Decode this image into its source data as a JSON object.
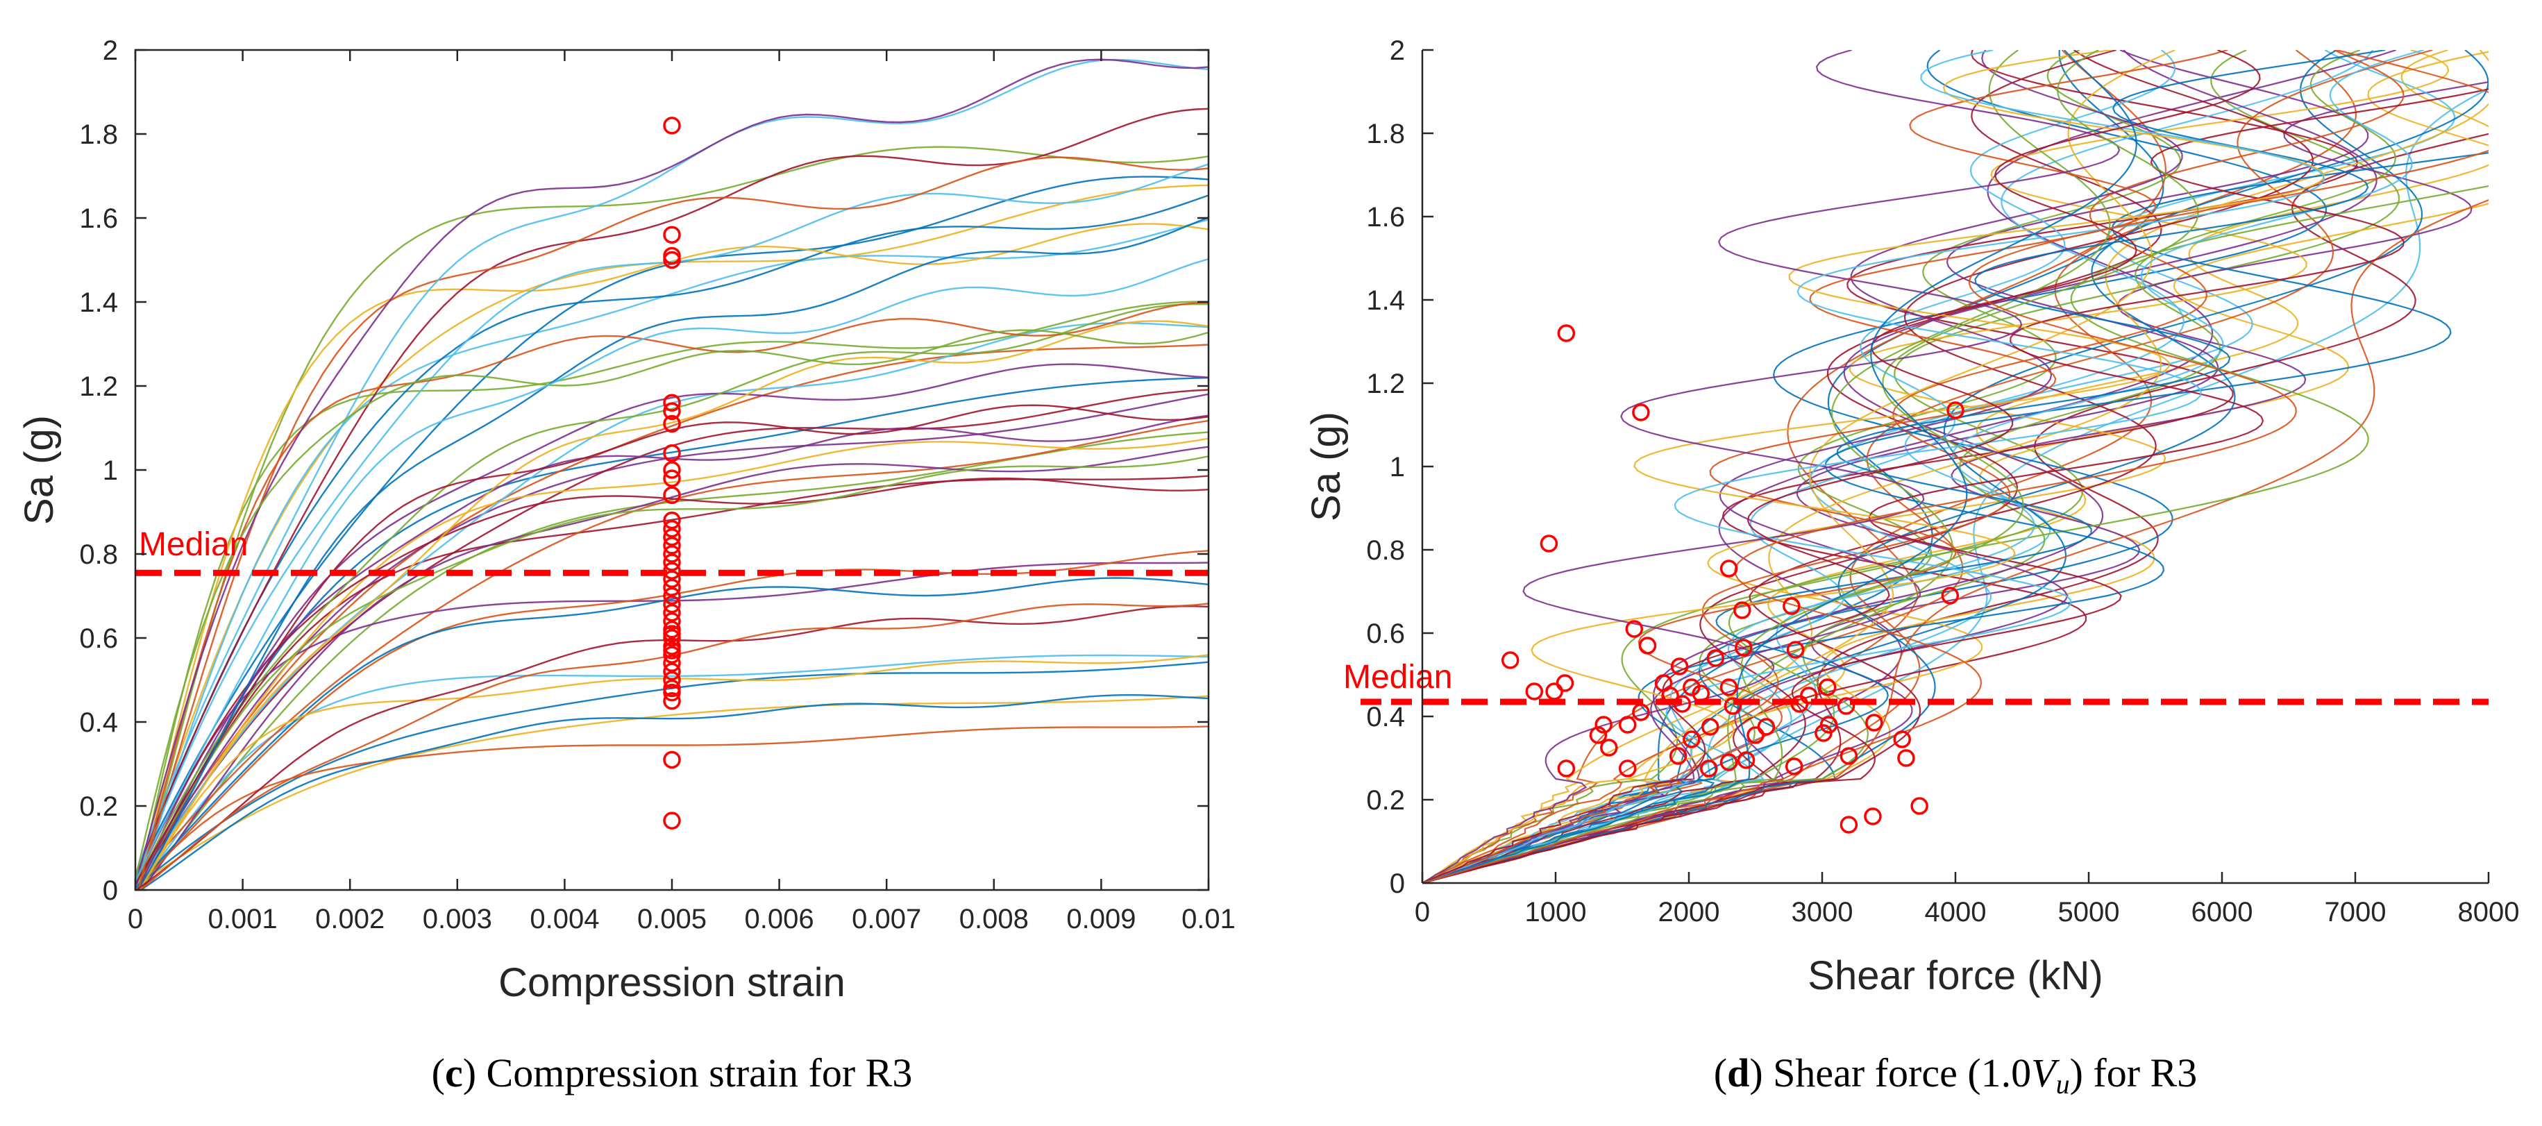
{
  "chart_data": [
    {
      "type": "line",
      "panel": "c",
      "xlabel": "Compression strain",
      "ylabel": "Sa (g)",
      "xlim": [
        0,
        0.01
      ],
      "ylim": [
        0,
        2
      ],
      "xticks": [
        "0",
        "0.001",
        "0.002",
        "0.003",
        "0.004",
        "0.005",
        "0.006",
        "0.007",
        "0.008",
        "0.009",
        "0.01"
      ],
      "yticks": [
        "0",
        "0.2",
        "0.4",
        "0.6",
        "0.8",
        "1",
        "1.2",
        "1.4",
        "1.6",
        "1.8",
        "2"
      ],
      "median_label": "Median",
      "median": 0.755,
      "curve_count": 44,
      "markers_x": [
        0.005
      ],
      "markers": [
        0.165,
        0.31,
        0.45,
        0.47,
        0.48,
        0.5,
        0.52,
        0.54,
        0.56,
        0.57,
        0.58,
        0.6,
        0.61,
        0.62,
        0.64,
        0.66,
        0.68,
        0.7,
        0.72,
        0.74,
        0.76,
        0.78,
        0.8,
        0.82,
        0.84,
        0.86,
        0.88,
        0.94,
        0.98,
        1.0,
        1.04,
        1.11,
        1.14,
        1.16,
        1.5,
        1.51,
        1.56,
        1.82
      ],
      "caption_letter": "c",
      "caption_rest": " Compression strain for R3"
    },
    {
      "type": "line",
      "panel": "d",
      "xlabel": "Shear force (kN)",
      "ylabel": "Sa (g)",
      "xlim": [
        0,
        8000
      ],
      "ylim": [
        0,
        2
      ],
      "xticks": [
        "0",
        "1000",
        "2000",
        "3000",
        "4000",
        "5000",
        "6000",
        "7000",
        "8000"
      ],
      "yticks": [
        "0",
        "0.2",
        "0.4",
        "0.6",
        "0.8",
        "1",
        "1.2",
        "1.4",
        "1.6",
        "1.8",
        "2"
      ],
      "median_label": "Median",
      "median": 0.435,
      "curve_count": 44,
      "markers": [
        [
          1080,
          1.32
        ],
        [
          1640,
          1.13
        ],
        [
          4000,
          1.135
        ],
        [
          950,
          0.815
        ],
        [
          2300,
          0.755
        ],
        [
          3960,
          0.69
        ],
        [
          2770,
          0.665
        ],
        [
          2400,
          0.655
        ],
        [
          1590,
          0.61
        ],
        [
          1690,
          0.57
        ],
        [
          2410,
          0.565
        ],
        [
          2800,
          0.56
        ],
        [
          660,
          0.535
        ],
        [
          2200,
          0.54
        ],
        [
          1930,
          0.52
        ],
        [
          1070,
          0.48
        ],
        [
          1810,
          0.48
        ],
        [
          2300,
          0.47
        ],
        [
          990,
          0.46
        ],
        [
          2020,
          0.47
        ],
        [
          3040,
          0.47
        ],
        [
          840,
          0.46
        ],
        [
          1860,
          0.45
        ],
        [
          2090,
          0.455
        ],
        [
          3180,
          0.425
        ],
        [
          1640,
          0.41
        ],
        [
          2330,
          0.425
        ],
        [
          2830,
          0.43
        ],
        [
          1950,
          0.43
        ],
        [
          2900,
          0.45
        ],
        [
          1360,
          0.38
        ],
        [
          1540,
          0.38
        ],
        [
          2160,
          0.375
        ],
        [
          3050,
          0.38
        ],
        [
          3390,
          0.385
        ],
        [
          1320,
          0.355
        ],
        [
          2020,
          0.345
        ],
        [
          2580,
          0.375
        ],
        [
          3600,
          0.345
        ],
        [
          3010,
          0.36
        ],
        [
          2500,
          0.355
        ],
        [
          1400,
          0.325
        ],
        [
          1920,
          0.305
        ],
        [
          3200,
          0.305
        ],
        [
          2430,
          0.295
        ],
        [
          3630,
          0.3
        ],
        [
          1080,
          0.275
        ],
        [
          1540,
          0.275
        ],
        [
          2150,
          0.275
        ],
        [
          2300,
          0.29
        ],
        [
          2790,
          0.28
        ],
        [
          3730,
          0.185
        ],
        [
          3380,
          0.16
        ],
        [
          3200,
          0.14
        ]
      ],
      "caption_letter": "d",
      "caption_rest": " Shear force (1.0",
      "caption_math_base": "V",
      "caption_math_sub": "u",
      "caption_tail": ") for R3"
    }
  ],
  "colors": {
    "median": "#ff0000",
    "markers": "#ff0000",
    "axis": "#262626",
    "series": [
      "#0072bd",
      "#d95319",
      "#edb120",
      "#7e2f8e",
      "#77ac30",
      "#4dbeee",
      "#a2142f"
    ]
  }
}
